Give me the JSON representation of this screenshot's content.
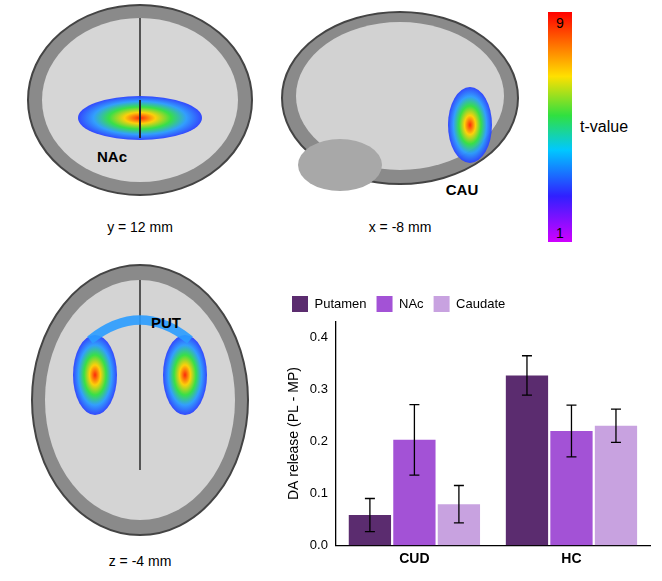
{
  "chart_data": {
    "type": "bar",
    "categories": [
      "CUD",
      "HC"
    ],
    "y_label": "DA release (PL - MP)",
    "series": [
      {
        "name": "Putamen",
        "color": "#5b2c6f",
        "values": [
          0.058,
          0.327
        ],
        "errors": [
          0.032,
          0.038
        ]
      },
      {
        "name": "NAc",
        "color": "#a352d6",
        "values": [
          0.203,
          0.22
        ],
        "errors": [
          0.068,
          0.05
        ]
      },
      {
        "name": "Caudate",
        "color": "#c8a2e0",
        "values": [
          0.079,
          0.23
        ],
        "errors": [
          0.036,
          0.032
        ]
      }
    ],
    "ylim": [
      0,
      0.43
    ],
    "yticks": [
      {
        "value": 0,
        "label": "0.0"
      },
      0.1,
      0.2,
      0.3,
      0.4
    ],
    "grid": false,
    "legend": "upper left"
  },
  "brain_panels": [
    {
      "region": "NAc",
      "slice": "y = 12 mm"
    },
    {
      "region": "CAU",
      "slice": "x = -8 mm"
    },
    {
      "region": "PUT",
      "slice": "z = -4 mm"
    }
  ],
  "color_bar": {
    "label": "t-value",
    "range": [
      1,
      9
    ],
    "ticks": [
      1,
      9
    ]
  }
}
